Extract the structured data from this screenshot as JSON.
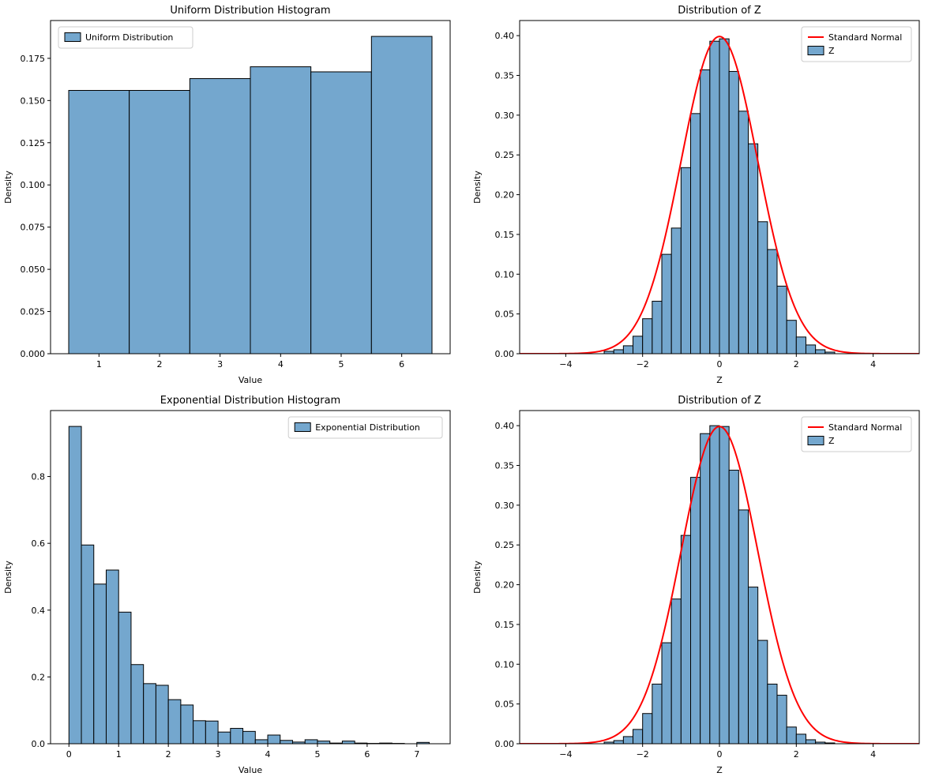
{
  "figure": {
    "background": "#ffffff",
    "bar_fill": "#74a7ce",
    "bar_edge": "#000000",
    "curve_color": "#ff0000",
    "legend_edge": "#cccccc"
  },
  "chart_data": [
    {
      "id": "uniform",
      "type": "bar",
      "title": "Uniform Distribution Histogram",
      "xlabel": "Value",
      "ylabel": "Density",
      "xlim": [
        0.2,
        6.8
      ],
      "ylim": [
        0,
        0.1974
      ],
      "xtick_vals": [
        1,
        2,
        3,
        4,
        5,
        6
      ],
      "xtick_labels": [
        "1",
        "2",
        "3",
        "4",
        "5",
        "6"
      ],
      "ytick_vals": [
        0,
        0.025,
        0.05,
        0.075,
        0.1,
        0.125,
        0.15,
        0.175
      ],
      "ytick_labels": [
        "0.000",
        "0.025",
        "0.050",
        "0.075",
        "0.100",
        "0.125",
        "0.150",
        "0.175"
      ],
      "bin_edges": [
        0.5,
        1.5,
        2.5,
        3.5,
        4.5,
        5.5,
        6.5
      ],
      "heights": [
        0.156,
        0.156,
        0.163,
        0.17,
        0.167,
        0.188
      ],
      "legend": {
        "loc": "upper-left",
        "entries": [
          {
            "type": "patch",
            "label": "Uniform Distribution"
          }
        ]
      }
    },
    {
      "id": "z-top",
      "type": "bar+line",
      "title": "Distribution of Z",
      "xlabel": "Z",
      "ylabel": "Density",
      "xlim": [
        -5.2,
        5.2
      ],
      "ylim": [
        0,
        0.419
      ],
      "xtick_vals": [
        -4,
        -2,
        0,
        2,
        4
      ],
      "xtick_labels": [
        "−4",
        "−2",
        "0",
        "2",
        "4"
      ],
      "ytick_vals": [
        0,
        0.05,
        0.1,
        0.15,
        0.2,
        0.25,
        0.3,
        0.35,
        0.4
      ],
      "ytick_labels": [
        "0.00",
        "0.05",
        "0.10",
        "0.15",
        "0.20",
        "0.25",
        "0.30",
        "0.35",
        "0.40"
      ],
      "bin_edges": [
        -3,
        -2.75,
        -2.5,
        -2.25,
        -2,
        -1.75,
        -1.5,
        -1.25,
        -1,
        -0.75,
        -0.5,
        -0.25,
        0,
        0.25,
        0.5,
        0.75,
        1,
        1.25,
        1.5,
        1.75,
        2,
        2.25,
        2.5,
        2.75,
        3
      ],
      "heights": [
        0.003,
        0.005,
        0.01,
        0.022,
        0.044,
        0.066,
        0.125,
        0.158,
        0.234,
        0.302,
        0.357,
        0.393,
        0.396,
        0.355,
        0.305,
        0.264,
        0.166,
        0.131,
        0.085,
        0.042,
        0.021,
        0.011,
        0.005,
        0.002
      ],
      "curve": {
        "label": "Standard Normal",
        "mean": 0,
        "sd": 1
      },
      "legend": {
        "loc": "upper-right",
        "entries": [
          {
            "type": "line",
            "label": "Standard Normal"
          },
          {
            "type": "patch",
            "label": "Z"
          }
        ]
      }
    },
    {
      "id": "exponential",
      "type": "bar",
      "title": "Exponential Distribution Histogram",
      "xlabel": "Value",
      "ylabel": "Density",
      "xlim": [
        -0.37,
        7.67
      ],
      "ylim": [
        0,
        0.9975
      ],
      "xtick_vals": [
        0,
        1,
        2,
        3,
        4,
        5,
        6,
        7
      ],
      "xtick_labels": [
        "0",
        "1",
        "2",
        "3",
        "4",
        "5",
        "6",
        "7"
      ],
      "ytick_vals": [
        0,
        0.2,
        0.4,
        0.6,
        0.8
      ],
      "ytick_labels": [
        "0.0",
        "0.2",
        "0.4",
        "0.6",
        "0.8"
      ],
      "bin_edges": [
        0,
        0.25,
        0.5,
        0.75,
        1,
        1.25,
        1.5,
        1.75,
        2,
        2.25,
        2.5,
        2.75,
        3,
        3.25,
        3.5,
        3.75,
        4,
        4.25,
        4.5,
        4.75,
        5,
        5.25,
        5.5,
        5.75,
        6,
        6.25,
        6.5,
        6.75,
        7,
        7.25
      ],
      "heights": [
        0.95,
        0.595,
        0.478,
        0.52,
        0.394,
        0.237,
        0.18,
        0.175,
        0.132,
        0.116,
        0.069,
        0.068,
        0.035,
        0.046,
        0.037,
        0.012,
        0.026,
        0.01,
        0.005,
        0.012,
        0.008,
        0.002,
        0.008,
        0.002,
        0.001,
        0.002,
        0.001,
        0.0,
        0.004
      ],
      "legend": {
        "loc": "upper-right",
        "entries": [
          {
            "type": "patch",
            "label": "Exponential Distribution"
          }
        ]
      }
    },
    {
      "id": "z-bottom",
      "type": "bar+line",
      "title": "Distribution of Z",
      "xlabel": "Z",
      "ylabel": "Density",
      "xlim": [
        -5.2,
        5.2
      ],
      "ylim": [
        0,
        0.419
      ],
      "xtick_vals": [
        -4,
        -2,
        0,
        2,
        4
      ],
      "xtick_labels": [
        "−4",
        "−2",
        "0",
        "2",
        "4"
      ],
      "ytick_vals": [
        0,
        0.05,
        0.1,
        0.15,
        0.2,
        0.25,
        0.3,
        0.35,
        0.4
      ],
      "ytick_labels": [
        "0.00",
        "0.05",
        "0.10",
        "0.15",
        "0.20",
        "0.25",
        "0.30",
        "0.35",
        "0.40"
      ],
      "bin_edges": [
        -3,
        -2.75,
        -2.5,
        -2.25,
        -2,
        -1.75,
        -1.5,
        -1.25,
        -1,
        -0.75,
        -0.5,
        -0.25,
        0,
        0.25,
        0.5,
        0.75,
        1,
        1.25,
        1.5,
        1.75,
        2,
        2.25,
        2.5,
        2.75,
        3
      ],
      "heights": [
        0.002,
        0.004,
        0.009,
        0.018,
        0.038,
        0.075,
        0.127,
        0.182,
        0.262,
        0.335,
        0.39,
        0.4,
        0.399,
        0.344,
        0.294,
        0.197,
        0.13,
        0.075,
        0.061,
        0.021,
        0.012,
        0.005,
        0.002,
        0.001
      ],
      "curve": {
        "label": "Standard Normal",
        "mean": 0,
        "sd": 1
      },
      "legend": {
        "loc": "upper-right",
        "entries": [
          {
            "type": "line",
            "label": "Standard Normal"
          },
          {
            "type": "patch",
            "label": "Z"
          }
        ]
      }
    }
  ]
}
